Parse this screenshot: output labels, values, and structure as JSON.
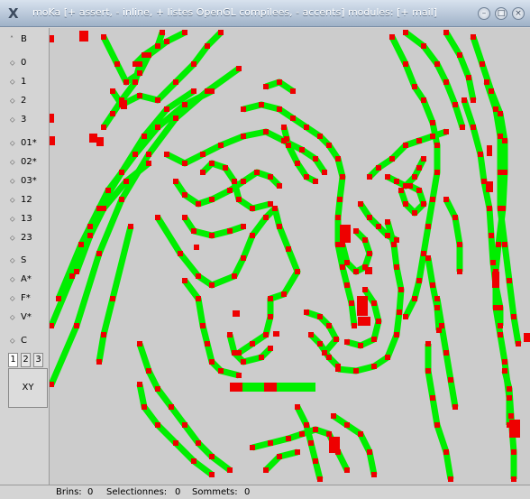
{
  "window": {
    "title": "moKa [+ assert, - inline, + listes OpenGL compilees, - accents] modules: [+ mail]",
    "icon": "x-icon",
    "controls": [
      "minimize",
      "maximize",
      "close"
    ]
  },
  "sidebar": {
    "items": [
      {
        "label": "B",
        "arrow": "^"
      },
      {
        "label": "0",
        "arrow": "◇"
      },
      {
        "label": "1",
        "arrow": "◇"
      },
      {
        "label": "2",
        "arrow": "◇"
      },
      {
        "label": "3",
        "arrow": "◇"
      },
      {
        "label": "01*",
        "arrow": "◇"
      },
      {
        "label": "02*",
        "arrow": "◇"
      },
      {
        "label": "03*",
        "arrow": "◇"
      },
      {
        "label": "12",
        "arrow": "◇"
      },
      {
        "label": "13",
        "arrow": "◇"
      },
      {
        "label": "23",
        "arrow": "◇"
      },
      {
        "label": "S",
        "arrow": "◇"
      },
      {
        "label": "A*",
        "arrow": "◇"
      },
      {
        "label": "F*",
        "arrow": "◇"
      },
      {
        "label": "V*",
        "arrow": "◇"
      },
      {
        "label": "C",
        "arrow": "◇"
      }
    ],
    "tabs": [
      "1",
      "2",
      "3"
    ],
    "active_tab": "1",
    "view_label": "XY"
  },
  "statusbar": {
    "brins_label": "Brins:",
    "brins_value": "0",
    "selection_label": "Selectionnes:",
    "selection_value": "0",
    "sommets_label": "Sommets:",
    "sommets_value": "0"
  },
  "colors": {
    "edge": "#00ee00",
    "vertex": "#ee0000",
    "canvas": "#cccccc"
  }
}
